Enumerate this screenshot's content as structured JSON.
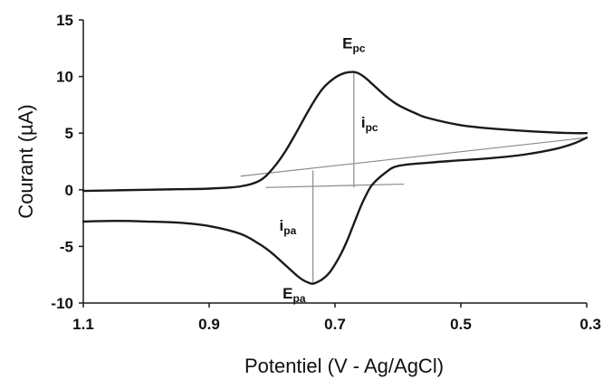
{
  "chart_data": {
    "type": "line",
    "title": "",
    "xlabel": "Potentiel (V - Ag/AgCl)",
    "ylabel": "Courant (µA)",
    "xlim": [
      1.1,
      0.3
    ],
    "ylim": [
      -10,
      15
    ],
    "x_reversed": true,
    "x_ticks": [
      "1.1",
      "0.9",
      "0.7",
      "0.5",
      "0.3"
    ],
    "y_ticks": [
      "15",
      "10",
      "5",
      "0",
      "-5",
      "-10"
    ],
    "grid": false,
    "legend": "none",
    "series": [
      {
        "type": "line",
        "x": [
          1.1,
          1.0,
          0.95,
          0.9,
          0.85,
          0.82,
          0.8,
          0.78,
          0.76,
          0.74,
          0.72,
          0.7,
          0.685,
          0.67,
          0.66,
          0.65,
          0.64,
          0.62,
          0.6,
          0.57,
          0.55,
          0.5,
          0.45,
          0.4,
          0.35,
          0.32,
          0.3
        ],
        "y": [
          -0.1,
          0.0,
          0.05,
          0.1,
          0.3,
          0.8,
          1.8,
          3.3,
          5.2,
          7.2,
          8.9,
          9.9,
          10.3,
          10.4,
          10.2,
          9.8,
          9.3,
          8.3,
          7.5,
          6.7,
          6.3,
          5.7,
          5.4,
          5.2,
          5.05,
          5.0,
          5.0
        ]
      },
      {
        "type": "line",
        "x": [
          0.3,
          0.32,
          0.35,
          0.4,
          0.45,
          0.5,
          0.55,
          0.6,
          0.62,
          0.64,
          0.65,
          0.66,
          0.67,
          0.68,
          0.69,
          0.7,
          0.71,
          0.72,
          0.73,
          0.735,
          0.74,
          0.75,
          0.76,
          0.78,
          0.8,
          0.82,
          0.85,
          0.9,
          0.95,
          1.0,
          1.05,
          1.1
        ],
        "y": [
          4.6,
          4.1,
          3.6,
          3.1,
          2.8,
          2.6,
          2.4,
          2.1,
          1.5,
          0.5,
          -0.4,
          -1.6,
          -3.0,
          -4.4,
          -5.6,
          -6.6,
          -7.4,
          -7.9,
          -8.2,
          -8.3,
          -8.25,
          -8.0,
          -7.6,
          -6.6,
          -5.6,
          -4.8,
          -3.9,
          -3.2,
          -2.9,
          -2.8,
          -2.75,
          -2.8
        ]
      }
    ],
    "baselines": [
      {
        "x": [
          0.85,
          0.3
        ],
        "y": [
          1.2,
          4.6
        ]
      },
      {
        "x": [
          0.81,
          0.59
        ],
        "y": [
          0.2,
          0.5
        ]
      }
    ],
    "drop_lines": [
      {
        "x": 0.67,
        "y": [
          0.2,
          10.4
        ]
      },
      {
        "x": 0.735,
        "y": [
          1.7,
          -8.3
        ]
      }
    ],
    "annotations": [
      {
        "main": "E",
        "sub": "pc",
        "x": 0.67,
        "y": 12.5
      },
      {
        "main": "i",
        "sub": "pc",
        "x": 0.645,
        "y": 5.5
      },
      {
        "main": "i",
        "sub": "pa",
        "x": 0.775,
        "y": -3.6
      },
      {
        "main": "E",
        "sub": "pa",
        "x": 0.765,
        "y": -9.6
      }
    ],
    "colors": {
      "curve": "#1a1a1a",
      "baseline": "#8a8a8a",
      "axis": "#1a1a1a"
    }
  }
}
